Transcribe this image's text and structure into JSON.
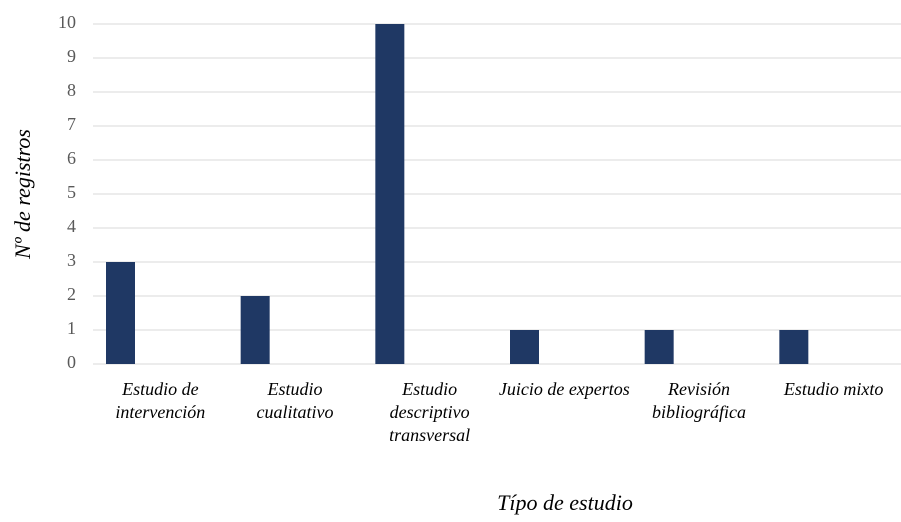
{
  "chart_data": {
    "type": "bar",
    "categories": [
      "Estudio de intervención",
      "Estudio cualitativo",
      "Estudio descriptivo transversal",
      "Juicio de expertos",
      "Revisión bibliográfica",
      "Estudio mixto"
    ],
    "values": [
      3,
      2,
      10,
      1,
      1,
      1
    ],
    "color": "#1f3864",
    "xlabel": "Típo de estudio",
    "ylabel": "Nº de registros",
    "ylim": [
      0,
      10
    ],
    "yticks": [
      0,
      1,
      2,
      3,
      4,
      5,
      6,
      7,
      8,
      9,
      10
    ],
    "grid": true
  }
}
